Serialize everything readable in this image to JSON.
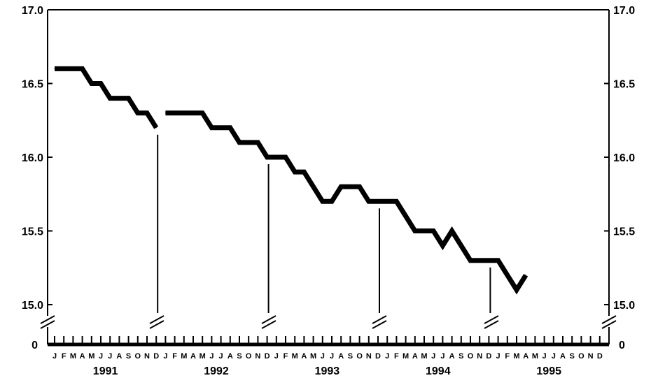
{
  "chart_data": {
    "type": "line",
    "title": "",
    "xlabel": "",
    "ylabel": "",
    "ylim": [
      15.0,
      17.0
    ],
    "y_ticks": [
      "17.0",
      "16.5",
      "16.0",
      "15.5",
      "15.0"
    ],
    "zero_label": "0",
    "broken_y_axis": true,
    "grid": false,
    "months": [
      "J",
      "F",
      "M",
      "A",
      "M",
      "J",
      "J",
      "A",
      "S",
      "O",
      "N",
      "D"
    ],
    "years": [
      "1991",
      "1992",
      "1993",
      "1994",
      "1995"
    ],
    "series": [
      {
        "values": [
          16.6,
          16.6,
          16.6,
          16.6,
          16.5,
          16.5,
          16.4,
          16.4,
          16.4,
          16.3,
          16.3,
          16.2,
          16.3,
          16.3,
          16.3,
          16.3,
          16.3,
          16.2,
          16.2,
          16.2,
          16.1,
          16.1,
          16.1,
          16.0,
          16.0,
          16.0,
          15.9,
          15.9,
          15.8,
          15.7,
          15.7,
          15.8,
          15.8,
          15.8,
          15.7,
          15.7,
          15.7,
          15.7,
          15.6,
          15.5,
          15.5,
          15.5,
          15.4,
          15.5,
          15.4,
          15.3,
          15.3,
          15.3,
          15.3,
          15.2,
          15.1,
          15.2
        ],
        "breaks_after_index": [
          11
        ]
      }
    ],
    "year_end_markers": [
      11,
      23,
      35,
      47
    ]
  }
}
